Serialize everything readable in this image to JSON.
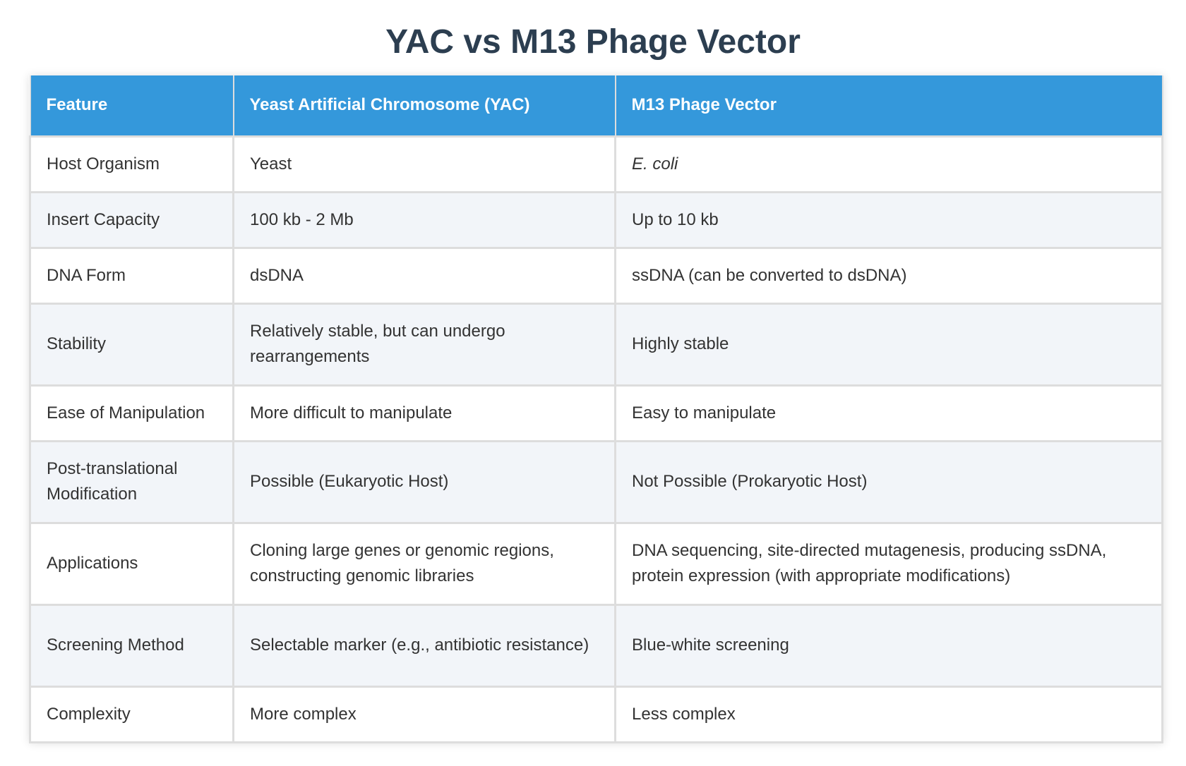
{
  "title": "YAC vs M13 Phage Vector",
  "table": {
    "headers": [
      "Feature",
      "Yeast Artificial Chromosome (YAC)",
      "M13 Phage Vector"
    ],
    "rows": [
      {
        "feature": "Host Organism",
        "yac": "Yeast",
        "m13": "E. coli"
      },
      {
        "feature": "Insert Capacity",
        "yac": "100 kb - 2 Mb",
        "m13": "Up to 10 kb"
      },
      {
        "feature": "DNA Form",
        "yac": "dsDNA",
        "m13": "ssDNA (can be converted to dsDNA)"
      },
      {
        "feature": "Stability",
        "yac": "Relatively stable, but can undergo rearrangements",
        "m13": "Highly stable"
      },
      {
        "feature": "Ease of Manipulation",
        "yac": "More difficult to manipulate",
        "m13": "Easy to manipulate"
      },
      {
        "feature": "Post-translational Modification",
        "yac": "Possible (Eukaryotic Host)",
        "m13": "Not Possible (Prokaryotic Host)"
      },
      {
        "feature": "Applications",
        "yac": "Cloning large genes or genomic regions, constructing genomic libraries",
        "m13": "DNA sequencing, site-directed mutagenesis, producing ssDNA, protein expression (with appropriate modifications)"
      },
      {
        "feature": "Screening Method",
        "yac": "Selectable marker (e.g., antibiotic resistance)",
        "m13": "Blue-white screening"
      },
      {
        "feature": "Complexity",
        "yac": "More complex",
        "m13": "Less complex"
      }
    ]
  },
  "colors": {
    "header_bg": "#3498db",
    "title": "#2c3e50",
    "row_alt": "#f2f5f9",
    "border": "#dddddd"
  }
}
